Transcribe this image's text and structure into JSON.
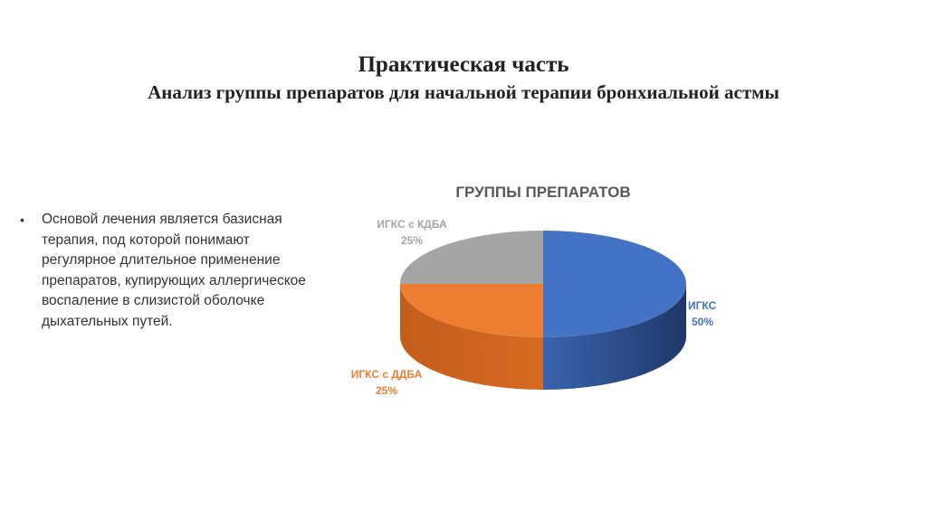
{
  "slide": {
    "title": "Практическая часть",
    "subtitle": "Анализ группы препаратов для начальной терапии бронхиальной астмы",
    "bullet": "Основой лечения является базисная терапия, под которой понимают регулярное длительное применение препаратов, купирующих аллергическое воспаление в слизистой оболочке дыхательных путей."
  },
  "chart_data": {
    "type": "pie",
    "title": "ГРУППЫ ПРЕПАРАТОВ",
    "categories": [
      "ИГКС",
      "ИГКС с ДДБА",
      "ИГКС с КДБА"
    ],
    "values": [
      50,
      25,
      25
    ],
    "labels": [
      "50%",
      "25%",
      "25%"
    ],
    "colors": [
      "#4472C4",
      "#ED7D31",
      "#A5A5A5"
    ],
    "style": "3d"
  }
}
